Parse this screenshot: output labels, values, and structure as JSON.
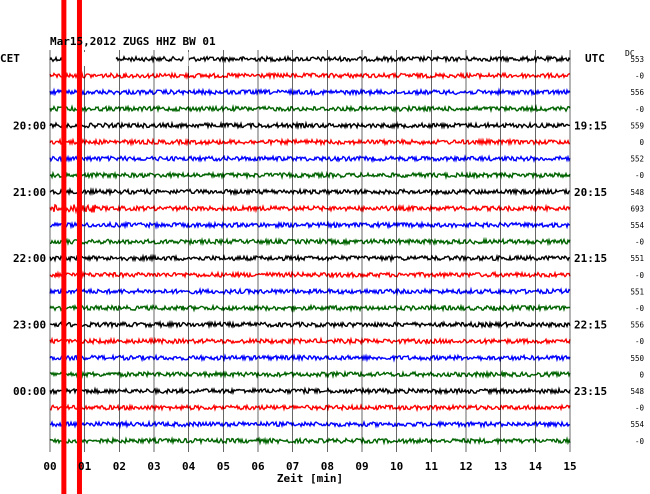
{
  "chart_data": {
    "type": "line",
    "title": "Mar15,2012   ZUGS HHZ BW 01",
    "xlabel": "Zeit [min]",
    "ylabel": "",
    "left_timezone": "CET",
    "right_timezone": "UTC",
    "dc_label": "DC",
    "xlim": [
      0,
      15
    ],
    "x_ticks": [
      "00",
      "01",
      "02",
      "03",
      "04",
      "05",
      "06",
      "07",
      "08",
      "09",
      "10",
      "11",
      "12",
      "13",
      "14",
      "15"
    ],
    "left_hour_labels": [
      "20:00",
      "21:00",
      "22:00",
      "23:00",
      "00:00"
    ],
    "right_hour_labels": [
      "19:15",
      "20:15",
      "21:15",
      "22:15",
      "23:15"
    ],
    "trace_colors": [
      "#000000",
      "#ff0000",
      "#0000ff",
      "#006400"
    ],
    "dc_values": [
      "553",
      "-0",
      "556",
      "-0",
      "559",
      "0",
      "552",
      "-0",
      "548",
      "693",
      "554",
      "-0",
      "551",
      "-0",
      "551",
      "-0",
      "556",
      "-0",
      "550",
      "0",
      "548",
      "-0",
      "554",
      "-0"
    ],
    "trace_count": 24,
    "minutes_per_trace": 15,
    "data_gap_minutes": [
      [
        0.45,
        1.9
      ],
      [
        3.85,
        4.0
      ]
    ],
    "event_marker_minutes": [
      0.4,
      0.85
    ],
    "event_marker_color": "#ff0000",
    "grid": true
  }
}
